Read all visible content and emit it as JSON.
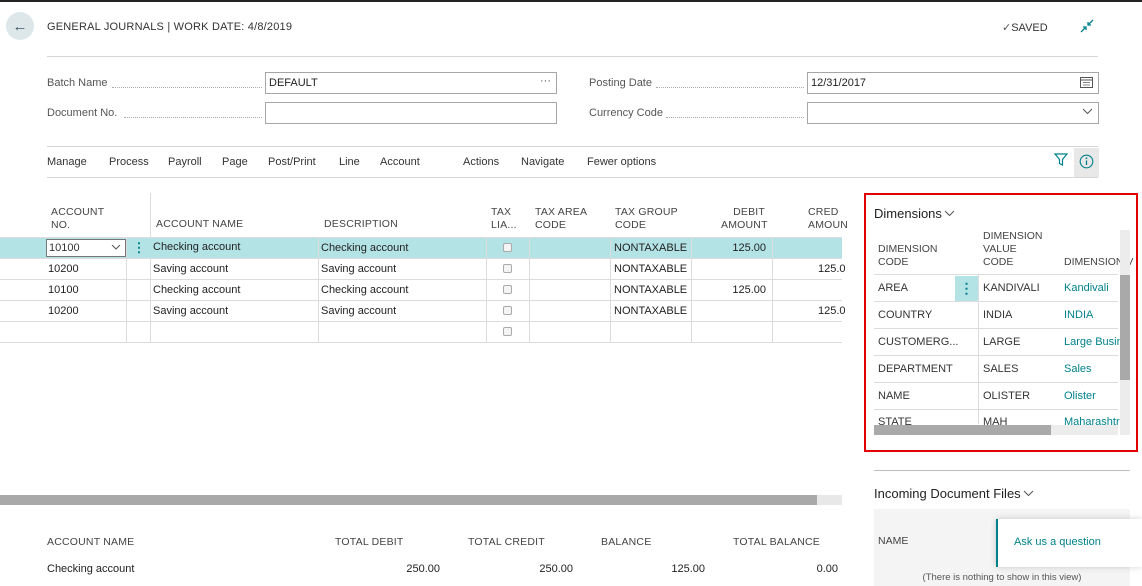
{
  "header": {
    "title": "GENERAL JOURNALS | WORK DATE: 4/8/2019",
    "saved_label": "SAVED"
  },
  "fields": {
    "batch_name_label": "Batch Name",
    "batch_name_value": "DEFAULT",
    "document_no_label": "Document No.",
    "document_no_value": "",
    "posting_date_label": "Posting Date",
    "posting_date_value": "12/31/2017",
    "currency_code_label": "Currency Code",
    "currency_code_value": ""
  },
  "menu": [
    "Manage",
    "Process",
    "Payroll",
    "Page",
    "Post/Print",
    "Line",
    "Account",
    "Actions",
    "Navigate",
    "Fewer options"
  ],
  "grid": {
    "headers": {
      "account_no": [
        "ACCOUNT",
        "NO."
      ],
      "account_name": "ACCOUNT NAME",
      "description": "DESCRIPTION",
      "tax_liable": [
        "TAX",
        "LIA..."
      ],
      "tax_area_code": [
        "TAX AREA",
        "CODE"
      ],
      "tax_group_code": [
        "TAX GROUP",
        "CODE"
      ],
      "debit_amount": [
        "DEBIT",
        "AMOUNT"
      ],
      "credit_amount": [
        "CRED",
        "AMOUN"
      ]
    },
    "rows": [
      {
        "account_no": "10100",
        "account_name": "Checking account",
        "description": "Checking account",
        "tax_group": "NONTAXABLE",
        "debit": "125.00",
        "credit": ""
      },
      {
        "account_no": "10200",
        "account_name": "Saving account",
        "description": "Saving account",
        "tax_group": "NONTAXABLE",
        "debit": "",
        "credit": "125.0"
      },
      {
        "account_no": "10100",
        "account_name": "Checking account",
        "description": "Checking account",
        "tax_group": "NONTAXABLE",
        "debit": "125.00",
        "credit": ""
      },
      {
        "account_no": "10200",
        "account_name": "Saving account",
        "description": "Saving account",
        "tax_group": "NONTAXABLE",
        "debit": "",
        "credit": "125.0"
      }
    ]
  },
  "totals": {
    "headers": [
      "ACCOUNT NAME",
      "TOTAL DEBIT",
      "TOTAL CREDIT",
      "BALANCE",
      "TOTAL BALANCE"
    ],
    "account_name": "Checking account",
    "total_debit": "250.00",
    "total_credit": "250.00",
    "balance": "125.00",
    "total_balance": "0.00"
  },
  "dimensions": {
    "title": "Dimensions",
    "headers": {
      "code": [
        "DIMENSION",
        "CODE"
      ],
      "value_code": [
        "DIMENSION",
        "VALUE",
        "CODE"
      ],
      "value_name": "DIMENSION V"
    },
    "rows": [
      {
        "code": "AREA",
        "value_code": "KANDIVALI",
        "name": "Kandivali"
      },
      {
        "code": "COUNTRY",
        "value_code": "INDIA",
        "name": "INDIA"
      },
      {
        "code": "CUSTOMERG...",
        "value_code": "LARGE",
        "name": "Large Busin"
      },
      {
        "code": "DEPARTMENT",
        "value_code": "SALES",
        "name": "Sales"
      },
      {
        "code": "NAME",
        "value_code": "OLISTER",
        "name": "Olister"
      },
      {
        "code": "STATE",
        "value_code": "MAH",
        "name": "Maharashtr"
      }
    ]
  },
  "incoming": {
    "title": "Incoming Document Files",
    "name_header": "NAME",
    "empty_text": "(There is nothing to show in this view)",
    "ask_label": "Ask us a question"
  },
  "colors": {
    "accent": "#00818b",
    "selected_row": "#b4e3e6",
    "highlight_border": "#e00000"
  }
}
